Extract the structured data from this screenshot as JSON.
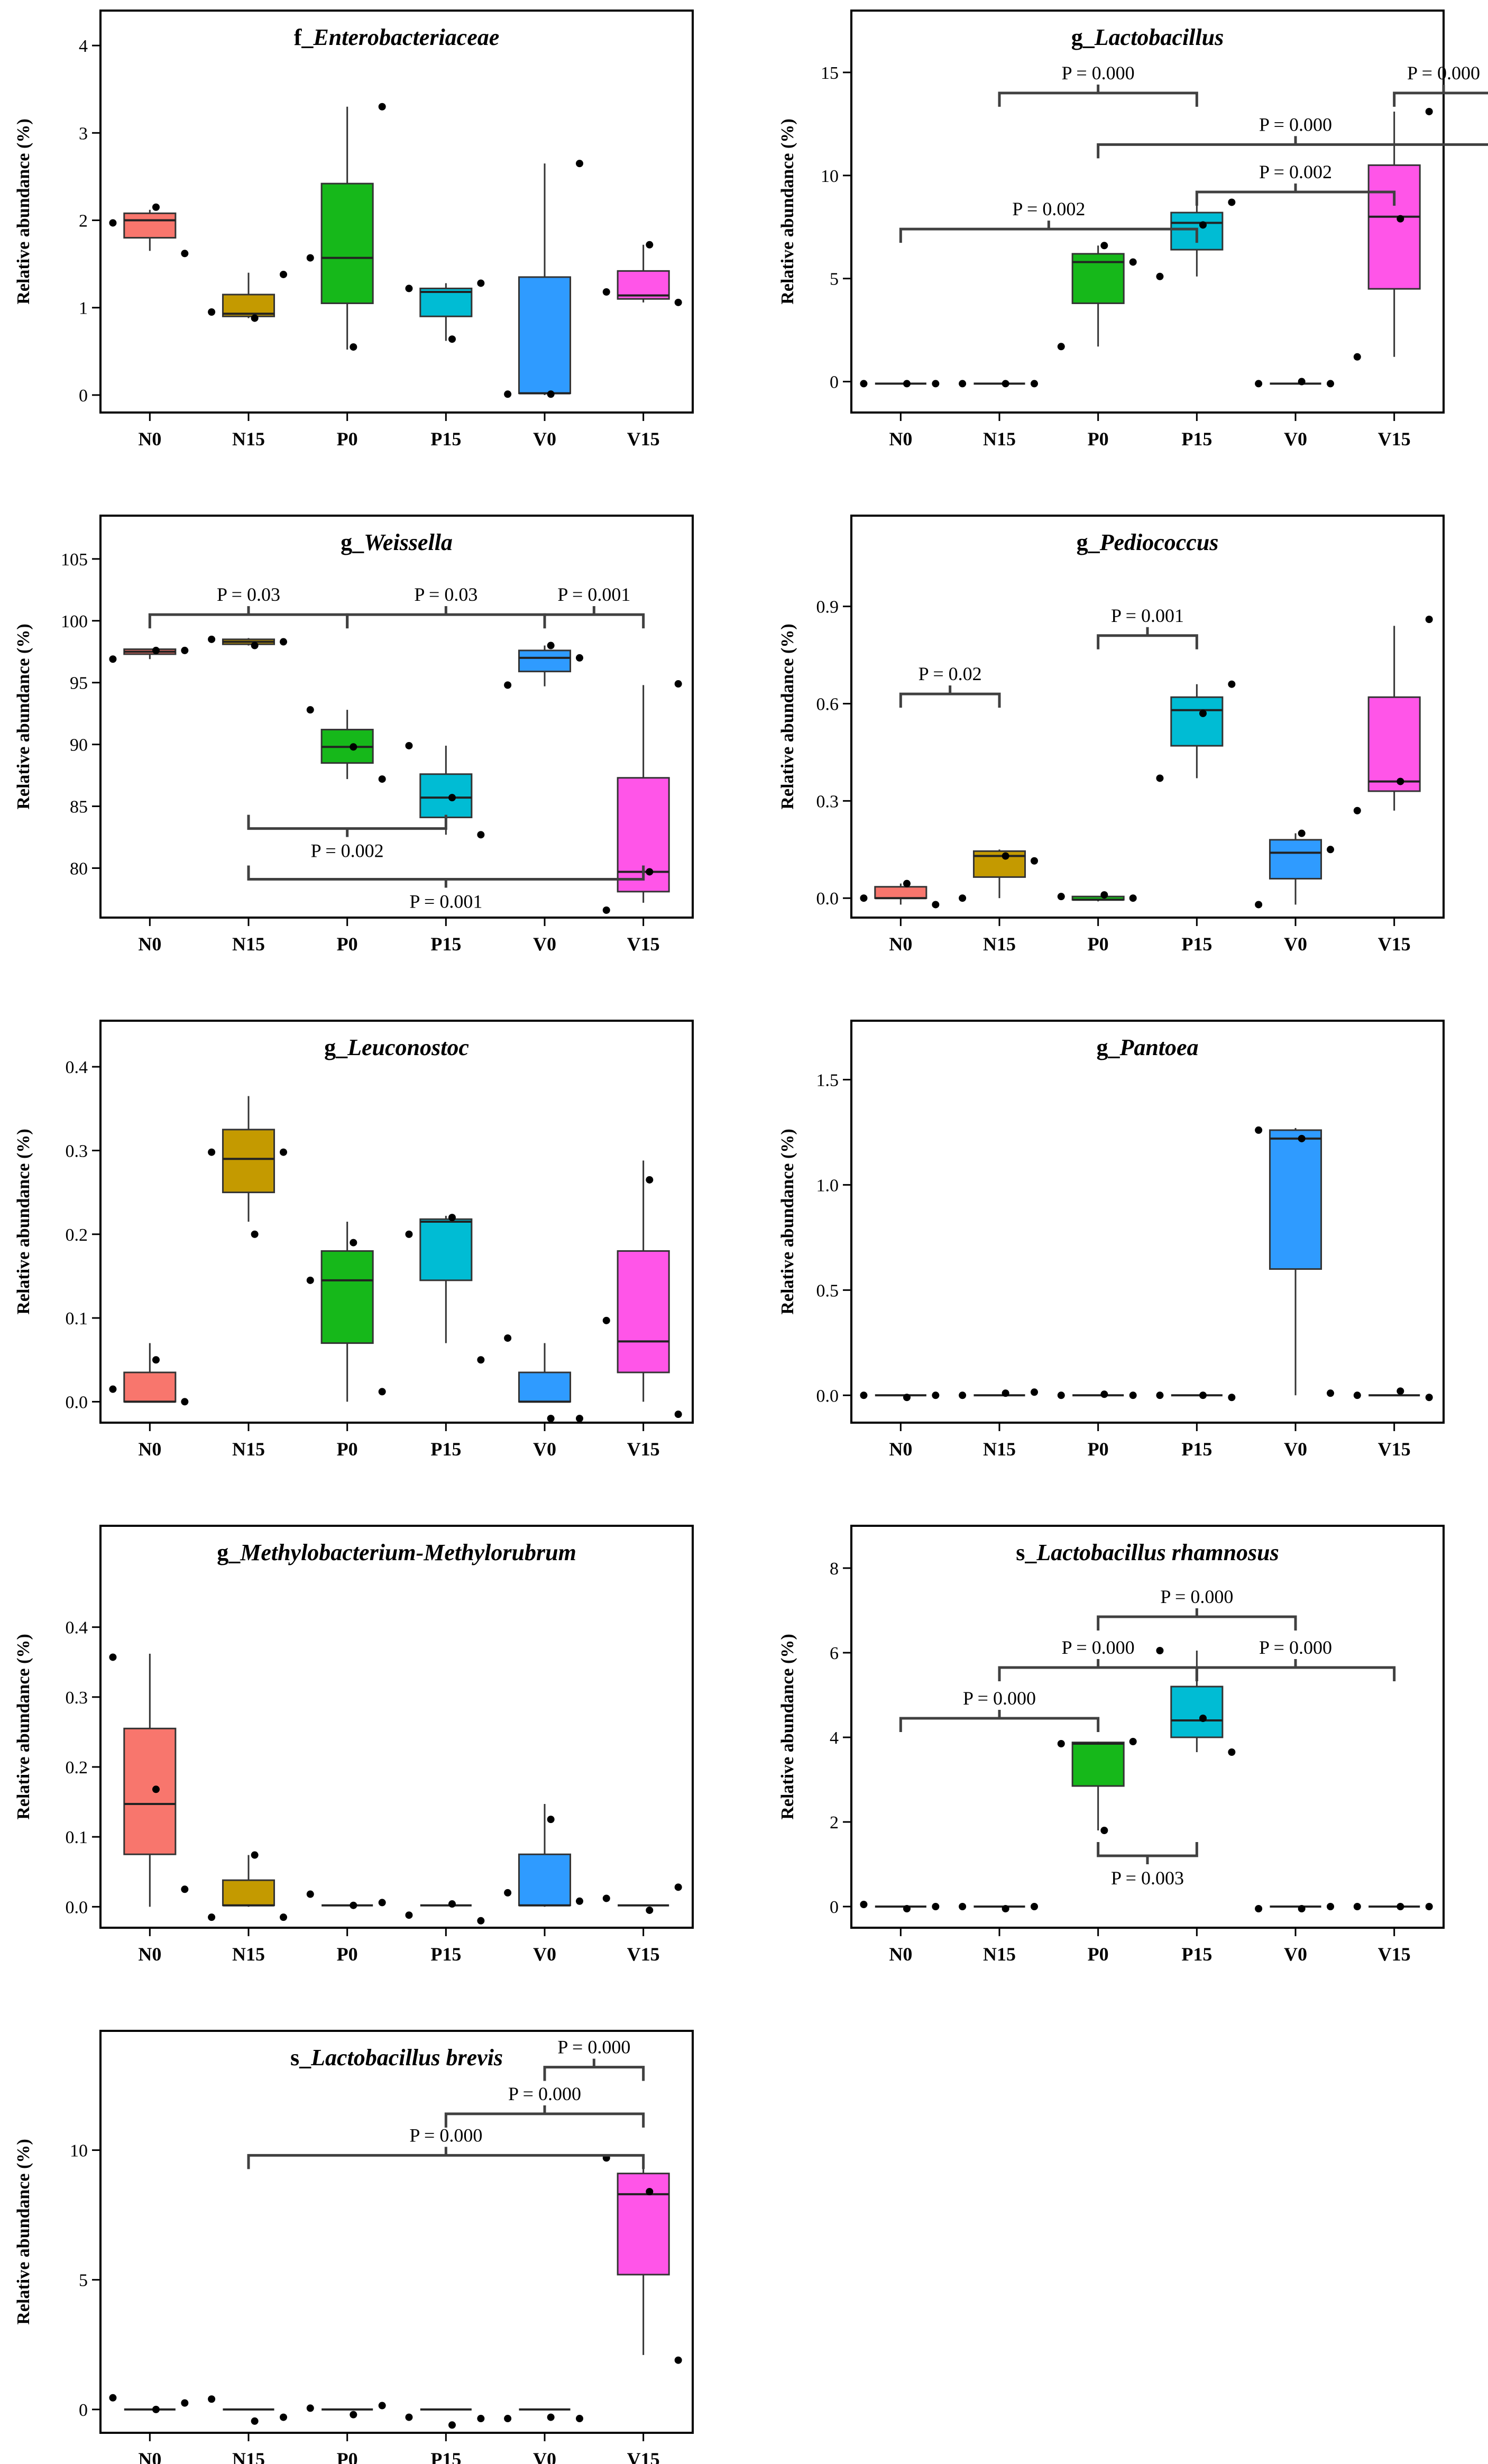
{
  "colors": {
    "N0": "#f8766d",
    "N15": "#c49a00",
    "P0": "#16b81a",
    "P15": "#00bcd4",
    "V0": "#2f9bff",
    "V15": "#ff55e8",
    "frame": "#000000",
    "bracket": "#404040"
  },
  "chart_data": [
    {
      "type": "box",
      "title_prefix": "f_",
      "title_main": "Enterobacteriaceae",
      "ylabel": "Relative abundance (%)",
      "ylim": [
        -0.2,
        4.4
      ],
      "yticks": [
        0,
        1,
        2,
        3,
        4
      ],
      "categories": [
        "N0",
        "N15",
        "P0",
        "P15",
        "V0",
        "V15"
      ],
      "boxes": [
        {
          "q1": 1.8,
          "median": 2.0,
          "q3": 2.08,
          "whisker_low": 1.65,
          "whisker_high": 2.12,
          "points": [
            1.97,
            2.15,
            1.62
          ]
        },
        {
          "q1": 0.9,
          "median": 0.93,
          "q3": 1.15,
          "whisker_low": 0.88,
          "whisker_high": 1.4,
          "points": [
            0.95,
            0.88,
            1.38
          ]
        },
        {
          "q1": 1.05,
          "median": 1.57,
          "q3": 2.42,
          "whisker_low": 0.52,
          "whisker_high": 3.3,
          "points": [
            1.57,
            0.55,
            3.3
          ]
        },
        {
          "q1": 0.9,
          "median": 1.18,
          "q3": 1.22,
          "whisker_low": 0.62,
          "whisker_high": 1.28,
          "points": [
            1.22,
            0.64,
            1.28
          ]
        },
        {
          "q1": 0.02,
          "median": 0.02,
          "q3": 1.35,
          "whisker_low": 0.0,
          "whisker_high": 2.65,
          "points": [
            0.01,
            0.01,
            2.65
          ]
        },
        {
          "q1": 1.1,
          "median": 1.14,
          "q3": 1.42,
          "whisker_low": 1.06,
          "whisker_high": 1.72,
          "points": [
            1.18,
            1.72,
            1.06
          ]
        }
      ],
      "brackets": []
    },
    {
      "type": "box",
      "title_prefix": "g_",
      "title_main": "Lactobacillus",
      "ylabel": "Relative abundance (%)",
      "ylim": [
        -1.5,
        18.0
      ],
      "yticks": [
        0,
        5,
        10,
        15
      ],
      "categories": [
        "N0",
        "N15",
        "P0",
        "P15",
        "V0",
        "V15"
      ],
      "boxes": [
        {
          "q1": -0.1,
          "median": -0.1,
          "q3": -0.1,
          "whisker_low": -0.1,
          "whisker_high": -0.1,
          "points": [
            -0.1,
            -0.1,
            -0.1
          ]
        },
        {
          "q1": -0.1,
          "median": -0.1,
          "q3": -0.1,
          "whisker_low": -0.1,
          "whisker_high": -0.1,
          "points": [
            -0.1,
            -0.1,
            -0.1
          ]
        },
        {
          "q1": 3.8,
          "median": 5.8,
          "q3": 6.2,
          "whisker_low": 1.7,
          "whisker_high": 6.6,
          "points": [
            1.7,
            6.6,
            5.8
          ]
        },
        {
          "q1": 6.4,
          "median": 7.7,
          "q3": 8.2,
          "whisker_low": 5.1,
          "whisker_high": 8.7,
          "points": [
            5.1,
            7.6,
            8.7
          ]
        },
        {
          "q1": -0.1,
          "median": -0.1,
          "q3": -0.1,
          "whisker_low": -0.1,
          "whisker_high": -0.1,
          "points": [
            -0.1,
            0.0,
            -0.1
          ]
        },
        {
          "q1": 4.5,
          "median": 8.0,
          "q3": 10.5,
          "whisker_low": 1.2,
          "whisker_high": 13.1,
          "points": [
            1.2,
            7.9,
            13.1
          ]
        }
      ],
      "brackets": [
        {
          "from": 1,
          "to": 3,
          "y": 14.0,
          "label": "P = 0.000"
        },
        {
          "from": 5,
          "to": 6,
          "y": 14.0,
          "label": "P = 0.000"
        },
        {
          "from": 2,
          "to": 6,
          "y": 11.5,
          "label": "P = 0.000"
        },
        {
          "from": 3,
          "to": 5,
          "y": 9.2,
          "label": "P = 0.002"
        },
        {
          "from": 0,
          "to": 3,
          "y": 7.4,
          "label": "P = 0.002"
        }
      ]
    },
    {
      "type": "box",
      "title_prefix": "g_",
      "title_main": "Weissella",
      "ylabel": "Relative abundance (%)",
      "ylim": [
        76.0,
        108.5
      ],
      "yticks": [
        80,
        85,
        90,
        95,
        100,
        105
      ],
      "categories": [
        "N0",
        "N15",
        "P0",
        "P15",
        "V0",
        "V15"
      ],
      "boxes": [
        {
          "q1": 97.3,
          "median": 97.5,
          "q3": 97.7,
          "whisker_low": 96.9,
          "whisker_high": 97.7,
          "points": [
            96.9,
            97.6,
            97.6
          ]
        },
        {
          "q1": 98.1,
          "median": 98.3,
          "q3": 98.5,
          "whisker_low": 98.0,
          "whisker_high": 98.6,
          "points": [
            98.5,
            98.0,
            98.3
          ]
        },
        {
          "q1": 88.5,
          "median": 89.8,
          "q3": 91.2,
          "whisker_low": 87.2,
          "whisker_high": 92.8,
          "points": [
            92.8,
            89.8,
            87.2
          ]
        },
        {
          "q1": 84.1,
          "median": 85.7,
          "q3": 87.6,
          "whisker_low": 82.7,
          "whisker_high": 89.9,
          "points": [
            89.9,
            85.7,
            82.7
          ]
        },
        {
          "q1": 95.9,
          "median": 97.0,
          "q3": 97.6,
          "whisker_low": 94.7,
          "whisker_high": 98.0,
          "points": [
            94.8,
            98.0,
            97.0
          ]
        },
        {
          "q1": 78.1,
          "median": 79.7,
          "q3": 87.3,
          "whisker_low": 77.2,
          "whisker_high": 94.8,
          "points": [
            76.6,
            79.7,
            94.9
          ]
        }
      ],
      "brackets": [
        {
          "from": 0,
          "to": 2,
          "y": 100.5,
          "label": "P = 0.03"
        },
        {
          "from": 2,
          "to": 4,
          "y": 100.5,
          "label": "P = 0.03"
        },
        {
          "from": 4,
          "to": 5,
          "y": 100.5,
          "label": "P = 0.001"
        },
        {
          "from": 1,
          "to": 3,
          "y": 83.2,
          "label": "P = 0.002",
          "below": true
        },
        {
          "from": 1,
          "to": 5,
          "y": 79.1,
          "label": "P = 0.001",
          "below": true
        }
      ]
    },
    {
      "type": "box",
      "title_prefix": "g_",
      "title_main": "Pediococcus",
      "ylabel": "Relative abundance (%)",
      "ylim": [
        -0.06,
        1.18
      ],
      "yticks": [
        0.0,
        0.3,
        0.6,
        0.9
      ],
      "categories": [
        "N0",
        "N15",
        "P0",
        "P15",
        "V0",
        "V15"
      ],
      "boxes": [
        {
          "q1": 0.0,
          "median": 0.0,
          "q3": 0.035,
          "whisker_low": -0.02,
          "whisker_high": 0.045,
          "points": [
            0.0,
            0.045,
            -0.02
          ]
        },
        {
          "q1": 0.065,
          "median": 0.13,
          "q3": 0.145,
          "whisker_low": 0.0,
          "whisker_high": 0.15,
          "points": [
            0.0,
            0.13,
            0.115
          ]
        },
        {
          "q1": -0.005,
          "median": -0.005,
          "q3": 0.005,
          "whisker_low": -0.01,
          "whisker_high": 0.005,
          "points": [
            0.005,
            0.01,
            0.0
          ]
        },
        {
          "q1": 0.47,
          "median": 0.58,
          "q3": 0.62,
          "whisker_low": 0.37,
          "whisker_high": 0.66,
          "points": [
            0.37,
            0.57,
            0.66
          ]
        },
        {
          "q1": 0.06,
          "median": 0.14,
          "q3": 0.18,
          "whisker_low": -0.02,
          "whisker_high": 0.2,
          "points": [
            -0.02,
            0.2,
            0.15
          ]
        },
        {
          "q1": 0.33,
          "median": 0.36,
          "q3": 0.62,
          "whisker_low": 0.27,
          "whisker_high": 0.84,
          "points": [
            0.27,
            0.36,
            0.86
          ]
        }
      ],
      "brackets": [
        {
          "from": 0,
          "to": 1,
          "y": 0.63,
          "label": "P = 0.02"
        },
        {
          "from": 2,
          "to": 3,
          "y": 0.81,
          "label": "P = 0.001"
        }
      ]
    },
    {
      "type": "box",
      "title_prefix": "g_",
      "title_main": "Leuconostoc",
      "ylabel": "Relative abundance (%)",
      "ylim": [
        -0.025,
        0.455
      ],
      "yticks": [
        0.0,
        0.1,
        0.2,
        0.3,
        0.4
      ],
      "categories": [
        "N0",
        "N15",
        "P0",
        "P15",
        "V0",
        "V15"
      ],
      "boxes": [
        {
          "q1": 0.0,
          "median": 0.0,
          "q3": 0.035,
          "whisker_low": 0.0,
          "whisker_high": 0.07,
          "points": [
            0.015,
            0.05,
            0.0
          ]
        },
        {
          "q1": 0.25,
          "median": 0.29,
          "q3": 0.325,
          "whisker_low": 0.215,
          "whisker_high": 0.365,
          "points": [
            0.298,
            0.2,
            0.298
          ]
        },
        {
          "q1": 0.07,
          "median": 0.145,
          "q3": 0.18,
          "whisker_low": 0.0,
          "whisker_high": 0.215,
          "points": [
            0.145,
            0.19,
            0.012
          ]
        },
        {
          "q1": 0.145,
          "median": 0.215,
          "q3": 0.218,
          "whisker_low": 0.07,
          "whisker_high": 0.222,
          "points": [
            0.2,
            0.22,
            0.05
          ]
        },
        {
          "q1": 0.0,
          "median": 0.0,
          "q3": 0.035,
          "whisker_low": 0.0,
          "whisker_high": 0.07,
          "points": [
            0.076,
            -0.02,
            -0.02
          ]
        },
        {
          "q1": 0.035,
          "median": 0.072,
          "q3": 0.18,
          "whisker_low": 0.0,
          "whisker_high": 0.288,
          "points": [
            0.097,
            0.265,
            -0.015
          ]
        }
      ],
      "brackets": []
    },
    {
      "type": "box",
      "title_prefix": "g_",
      "title_main": "Pantoea",
      "ylabel": "Relative abundance (%)",
      "ylim": [
        -0.13,
        1.78
      ],
      "yticks": [
        0.0,
        0.5,
        1.0,
        1.5
      ],
      "categories": [
        "N0",
        "N15",
        "P0",
        "P15",
        "V0",
        "V15"
      ],
      "boxes": [
        {
          "q1": 0.0,
          "median": 0.0,
          "q3": 0.0,
          "whisker_low": 0.0,
          "whisker_high": 0.0,
          "points": [
            0.0,
            -0.01,
            0.0
          ]
        },
        {
          "q1": 0.0,
          "median": 0.0,
          "q3": 0.0,
          "whisker_low": 0.0,
          "whisker_high": 0.0,
          "points": [
            0.0,
            0.01,
            0.015
          ]
        },
        {
          "q1": 0.0,
          "median": 0.0,
          "q3": 0.0,
          "whisker_low": 0.0,
          "whisker_high": 0.0,
          "points": [
            0.0,
            0.005,
            0.0
          ]
        },
        {
          "q1": 0.0,
          "median": 0.0,
          "q3": 0.0,
          "whisker_low": 0.0,
          "whisker_high": 0.0,
          "points": [
            0.0,
            0.0,
            -0.01
          ]
        },
        {
          "q1": 0.6,
          "median": 1.22,
          "q3": 1.26,
          "whisker_low": 0.0,
          "whisker_high": 1.27,
          "points": [
            1.26,
            1.22,
            0.01
          ]
        },
        {
          "q1": 0.0,
          "median": 0.0,
          "q3": 0.0,
          "whisker_low": 0.0,
          "whisker_high": 0.0,
          "points": [
            0.0,
            0.02,
            -0.01
          ]
        }
      ],
      "brackets": []
    },
    {
      "type": "box",
      "title_prefix": "g_",
      "title_main": "Methylobacterium-Methylorubrum",
      "ylabel": "Relative abundance (%)",
      "ylim": [
        -0.03,
        0.545
      ],
      "yticks": [
        0.0,
        0.1,
        0.2,
        0.3,
        0.4
      ],
      "categories": [
        "N0",
        "N15",
        "P0",
        "P15",
        "V0",
        "V15"
      ],
      "boxes": [
        {
          "q1": 0.075,
          "median": 0.147,
          "q3": 0.255,
          "whisker_low": 0.0,
          "whisker_high": 0.362,
          "points": [
            0.357,
            0.168,
            0.025
          ]
        },
        {
          "q1": 0.002,
          "median": 0.002,
          "q3": 0.038,
          "whisker_low": 0.0,
          "whisker_high": 0.074,
          "points": [
            -0.015,
            0.074,
            -0.015
          ]
        },
        {
          "q1": 0.002,
          "median": 0.002,
          "q3": 0.002,
          "whisker_low": 0.002,
          "whisker_high": 0.002,
          "points": [
            0.018,
            0.002,
            0.006
          ]
        },
        {
          "q1": 0.002,
          "median": 0.002,
          "q3": 0.002,
          "whisker_low": 0.002,
          "whisker_high": 0.002,
          "points": [
            -0.012,
            0.004,
            -0.02
          ]
        },
        {
          "q1": 0.002,
          "median": 0.002,
          "q3": 0.075,
          "whisker_low": 0.0,
          "whisker_high": 0.147,
          "points": [
            0.02,
            0.125,
            0.008
          ]
        },
        {
          "q1": 0.002,
          "median": 0.002,
          "q3": 0.002,
          "whisker_low": 0.002,
          "whisker_high": 0.002,
          "points": [
            0.012,
            -0.005,
            0.028
          ]
        }
      ],
      "brackets": []
    },
    {
      "type": "box",
      "title_prefix": "s_",
      "title_main": "Lactobacillus rhamnosus",
      "ylabel": "Relative abundance (%)",
      "ylim": [
        -0.5,
        9.0
      ],
      "yticks": [
        0,
        2,
        4,
        6,
        8
      ],
      "categories": [
        "N0",
        "N15",
        "P0",
        "P15",
        "V0",
        "V15"
      ],
      "boxes": [
        {
          "q1": 0.0,
          "median": 0.0,
          "q3": 0.0,
          "whisker_low": 0.0,
          "whisker_high": 0.0,
          "points": [
            0.05,
            -0.05,
            0.0
          ]
        },
        {
          "q1": 0.0,
          "median": 0.0,
          "q3": 0.0,
          "whisker_low": 0.0,
          "whisker_high": 0.0,
          "points": [
            0.0,
            -0.05,
            0.0
          ]
        },
        {
          "q1": 2.85,
          "median": 3.85,
          "q3": 3.88,
          "whisker_low": 1.8,
          "whisker_high": 3.9,
          "points": [
            3.85,
            1.8,
            3.9
          ]
        },
        {
          "q1": 4.0,
          "median": 4.4,
          "q3": 5.2,
          "whisker_low": 3.65,
          "whisker_high": 6.05,
          "points": [
            6.05,
            4.45,
            3.65
          ]
        },
        {
          "q1": 0.0,
          "median": 0.0,
          "q3": 0.0,
          "whisker_low": 0.0,
          "whisker_high": 0.0,
          "points": [
            -0.05,
            -0.05,
            0.0
          ]
        },
        {
          "q1": 0.0,
          "median": 0.0,
          "q3": 0.0,
          "whisker_low": 0.0,
          "whisker_high": 0.0,
          "points": [
            0.0,
            0.0,
            0.0
          ]
        }
      ],
      "brackets": [
        {
          "from": 2,
          "to": 4,
          "y": 6.85,
          "label": "P = 0.000"
        },
        {
          "from": 1,
          "to": 3,
          "y": 5.65,
          "label": "P = 0.000"
        },
        {
          "from": 3,
          "to": 5,
          "y": 5.65,
          "label": "P = 0.000"
        },
        {
          "from": 0,
          "to": 2,
          "y": 4.45,
          "label": "P = 0.000"
        },
        {
          "from": 2,
          "to": 3,
          "y": 1.2,
          "label": "P = 0.003",
          "below": true
        }
      ]
    },
    {
      "type": "box",
      "title_prefix": "s_",
      "title_main": "Lactobacillus brevis",
      "ylabel": "Relative abundance (%)",
      "ylim": [
        -0.9,
        14.6
      ],
      "yticks": [
        0,
        5,
        10
      ],
      "categories": [
        "N0",
        "N15",
        "P0",
        "P15",
        "V0",
        "V15"
      ],
      "boxes": [
        {
          "q1": 0.0,
          "median": 0.0,
          "q3": 0.0,
          "whisker_low": 0.0,
          "whisker_high": 0.0,
          "points": [
            0.45,
            0.0,
            0.25
          ]
        },
        {
          "q1": 0.0,
          "median": 0.0,
          "q3": 0.0,
          "whisker_low": 0.0,
          "whisker_high": 0.0,
          "points": [
            0.4,
            -0.45,
            -0.3
          ]
        },
        {
          "q1": 0.0,
          "median": 0.0,
          "q3": 0.0,
          "whisker_low": 0.0,
          "whisker_high": 0.0,
          "points": [
            0.05,
            -0.2,
            0.15
          ]
        },
        {
          "q1": 0.0,
          "median": 0.0,
          "q3": 0.0,
          "whisker_low": 0.0,
          "whisker_high": 0.0,
          "points": [
            -0.3,
            -0.6,
            -0.35
          ]
        },
        {
          "q1": 0.0,
          "median": 0.0,
          "q3": 0.0,
          "whisker_low": 0.0,
          "whisker_high": 0.0,
          "points": [
            -0.35,
            -0.3,
            -0.35
          ]
        },
        {
          "q1": 5.2,
          "median": 8.3,
          "q3": 9.1,
          "whisker_low": 2.1,
          "whisker_high": 9.5,
          "points": [
            9.7,
            8.4,
            1.9
          ]
        }
      ],
      "brackets": [
        {
          "from": 4,
          "to": 5,
          "y": 13.2,
          "label": "P = 0.000"
        },
        {
          "from": 3,
          "to": 5,
          "y": 11.4,
          "label": "P = 0.000"
        },
        {
          "from": 1,
          "to": 5,
          "y": 9.8,
          "label": "P = 0.000"
        }
      ]
    }
  ]
}
